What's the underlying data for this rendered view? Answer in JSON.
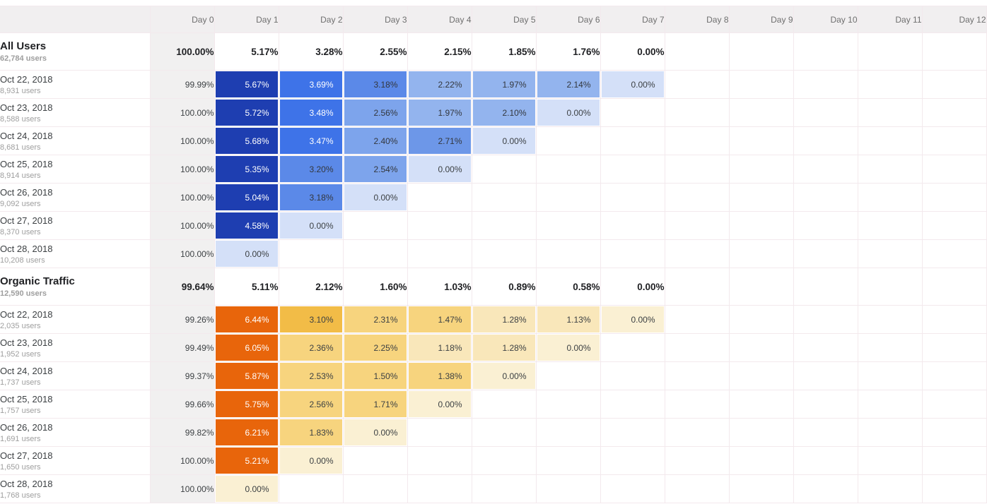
{
  "colors": {
    "grid_line": "#f3e9ed",
    "header_bg": "#f1eff0",
    "header_text": "#6f6f6f",
    "day0_column_bg": "#f1f0f0",
    "label_primary": "#3c4043",
    "label_secondary": "#9e9e9e",
    "section_text": "#202124",
    "blue_series_max": "#1e3eb1",
    "orange_series_max": "#e8650b"
  },
  "chart_data": {
    "type": "heatmap",
    "unit": "%",
    "columns": [
      "Day 0",
      "Day 1",
      "Day 2",
      "Day 3",
      "Day 4",
      "Day 5",
      "Day 6",
      "Day 7",
      "Day 8",
      "Day 9",
      "Day 10",
      "Day 11",
      "Day 12"
    ],
    "palette": {
      "b5": {
        "bg": "#1e3eb1",
        "fg": "#ffffff"
      },
      "b4": {
        "bg": "#3e73e8",
        "fg": "#ffffff"
      },
      "b3": {
        "bg": "#5b89e8",
        "fg": "#33373d"
      },
      "b3l": {
        "bg": "#6d97e8",
        "fg": "#33373d"
      },
      "b2h": {
        "bg": "#7da4ec",
        "fg": "#33373d"
      },
      "b2": {
        "bg": "#93b4ee",
        "fg": "#33373d"
      },
      "b0": {
        "bg": "#d4e0f8",
        "fg": "#3c4043"
      },
      "o5": {
        "bg": "#e8650b",
        "fg": "#ffffff"
      },
      "o4": {
        "bg": "#f2bc47",
        "fg": "#3c4043"
      },
      "o3": {
        "bg": "#f7d47e",
        "fg": "#3c4043"
      },
      "o2": {
        "bg": "#f9e7ba",
        "fg": "#3c4043"
      },
      "o1": {
        "bg": "#faf0d3",
        "fg": "#3c4043"
      }
    },
    "sections": [
      {
        "label": "All Users",
        "sublabel": "62,784 users",
        "summary": [
          "100.00%",
          "5.17%",
          "3.28%",
          "2.55%",
          "2.15%",
          "1.85%",
          "1.76%",
          "0.00%"
        ],
        "rows": [
          {
            "label": "Oct 22, 2018",
            "sublabel": "8,931 users",
            "day0": "99.99%",
            "cells": [
              [
                "5.67%",
                "b5"
              ],
              [
                "3.69%",
                "b4"
              ],
              [
                "3.18%",
                "b3"
              ],
              [
                "2.22%",
                "b2"
              ],
              [
                "1.97%",
                "b2"
              ],
              [
                "2.14%",
                "b2"
              ],
              [
                "0.00%",
                "b0"
              ]
            ]
          },
          {
            "label": "Oct 23, 2018",
            "sublabel": "8,588 users",
            "day0": "100.00%",
            "cells": [
              [
                "5.72%",
                "b5"
              ],
              [
                "3.48%",
                "b4"
              ],
              [
                "2.56%",
                "b2h"
              ],
              [
                "1.97%",
                "b2"
              ],
              [
                "2.10%",
                "b2"
              ],
              [
                "0.00%",
                "b0"
              ]
            ]
          },
          {
            "label": "Oct 24, 2018",
            "sublabel": "8,681 users",
            "day0": "100.00%",
            "cells": [
              [
                "5.68%",
                "b5"
              ],
              [
                "3.47%",
                "b4"
              ],
              [
                "2.40%",
                "b2h"
              ],
              [
                "2.71%",
                "b3l"
              ],
              [
                "0.00%",
                "b0"
              ]
            ]
          },
          {
            "label": "Oct 25, 2018",
            "sublabel": "8,914 users",
            "day0": "100.00%",
            "cells": [
              [
                "5.35%",
                "b5"
              ],
              [
                "3.20%",
                "b3"
              ],
              [
                "2.54%",
                "b2h"
              ],
              [
                "0.00%",
                "b0"
              ]
            ]
          },
          {
            "label": "Oct 26, 2018",
            "sublabel": "9,092 users",
            "day0": "100.00%",
            "cells": [
              [
                "5.04%",
                "b5"
              ],
              [
                "3.18%",
                "b3"
              ],
              [
                "0.00%",
                "b0"
              ]
            ]
          },
          {
            "label": "Oct 27, 2018",
            "sublabel": "8,370 users",
            "day0": "100.00%",
            "cells": [
              [
                "4.58%",
                "b5"
              ],
              [
                "0.00%",
                "b0"
              ]
            ]
          },
          {
            "label": "Oct 28, 2018",
            "sublabel": "10,208 users",
            "day0": "100.00%",
            "cells": [
              [
                "0.00%",
                "b0"
              ]
            ]
          }
        ]
      },
      {
        "label": "Organic Traffic",
        "sublabel": "12,590 users",
        "summary": [
          "99.64%",
          "5.11%",
          "2.12%",
          "1.60%",
          "1.03%",
          "0.89%",
          "0.58%",
          "0.00%"
        ],
        "rows": [
          {
            "label": "Oct 22, 2018",
            "sublabel": "2,035 users",
            "day0": "99.26%",
            "cells": [
              [
                "6.44%",
                "o5"
              ],
              [
                "3.10%",
                "o4"
              ],
              [
                "2.31%",
                "o3"
              ],
              [
                "1.47%",
                "o3"
              ],
              [
                "1.28%",
                "o2"
              ],
              [
                "1.13%",
                "o2"
              ],
              [
                "0.00%",
                "o1"
              ]
            ]
          },
          {
            "label": "Oct 23, 2018",
            "sublabel": "1,952 users",
            "day0": "99.49%",
            "cells": [
              [
                "6.05%",
                "o5"
              ],
              [
                "2.36%",
                "o3"
              ],
              [
                "2.25%",
                "o3"
              ],
              [
                "1.18%",
                "o2"
              ],
              [
                "1.28%",
                "o2"
              ],
              [
                "0.00%",
                "o1"
              ]
            ]
          },
          {
            "label": "Oct 24, 2018",
            "sublabel": "1,737 users",
            "day0": "99.37%",
            "cells": [
              [
                "5.87%",
                "o5"
              ],
              [
                "2.53%",
                "o3"
              ],
              [
                "1.50%",
                "o3"
              ],
              [
                "1.38%",
                "o3"
              ],
              [
                "0.00%",
                "o1"
              ]
            ]
          },
          {
            "label": "Oct 25, 2018",
            "sublabel": "1,757 users",
            "day0": "99.66%",
            "cells": [
              [
                "5.75%",
                "o5"
              ],
              [
                "2.56%",
                "o3"
              ],
              [
                "1.71%",
                "o3"
              ],
              [
                "0.00%",
                "o1"
              ]
            ]
          },
          {
            "label": "Oct 26, 2018",
            "sublabel": "1,691 users",
            "day0": "99.82%",
            "cells": [
              [
                "6.21%",
                "o5"
              ],
              [
                "1.83%",
                "o3"
              ],
              [
                "0.00%",
                "o1"
              ]
            ]
          },
          {
            "label": "Oct 27, 2018",
            "sublabel": "1,650 users",
            "day0": "100.00%",
            "cells": [
              [
                "5.21%",
                "o5"
              ],
              [
                "0.00%",
                "o1"
              ]
            ]
          },
          {
            "label": "Oct 28, 2018",
            "sublabel": "1,768 users",
            "day0": "100.00%",
            "cells": [
              [
                "0.00%",
                "o1"
              ]
            ]
          }
        ]
      }
    ]
  }
}
